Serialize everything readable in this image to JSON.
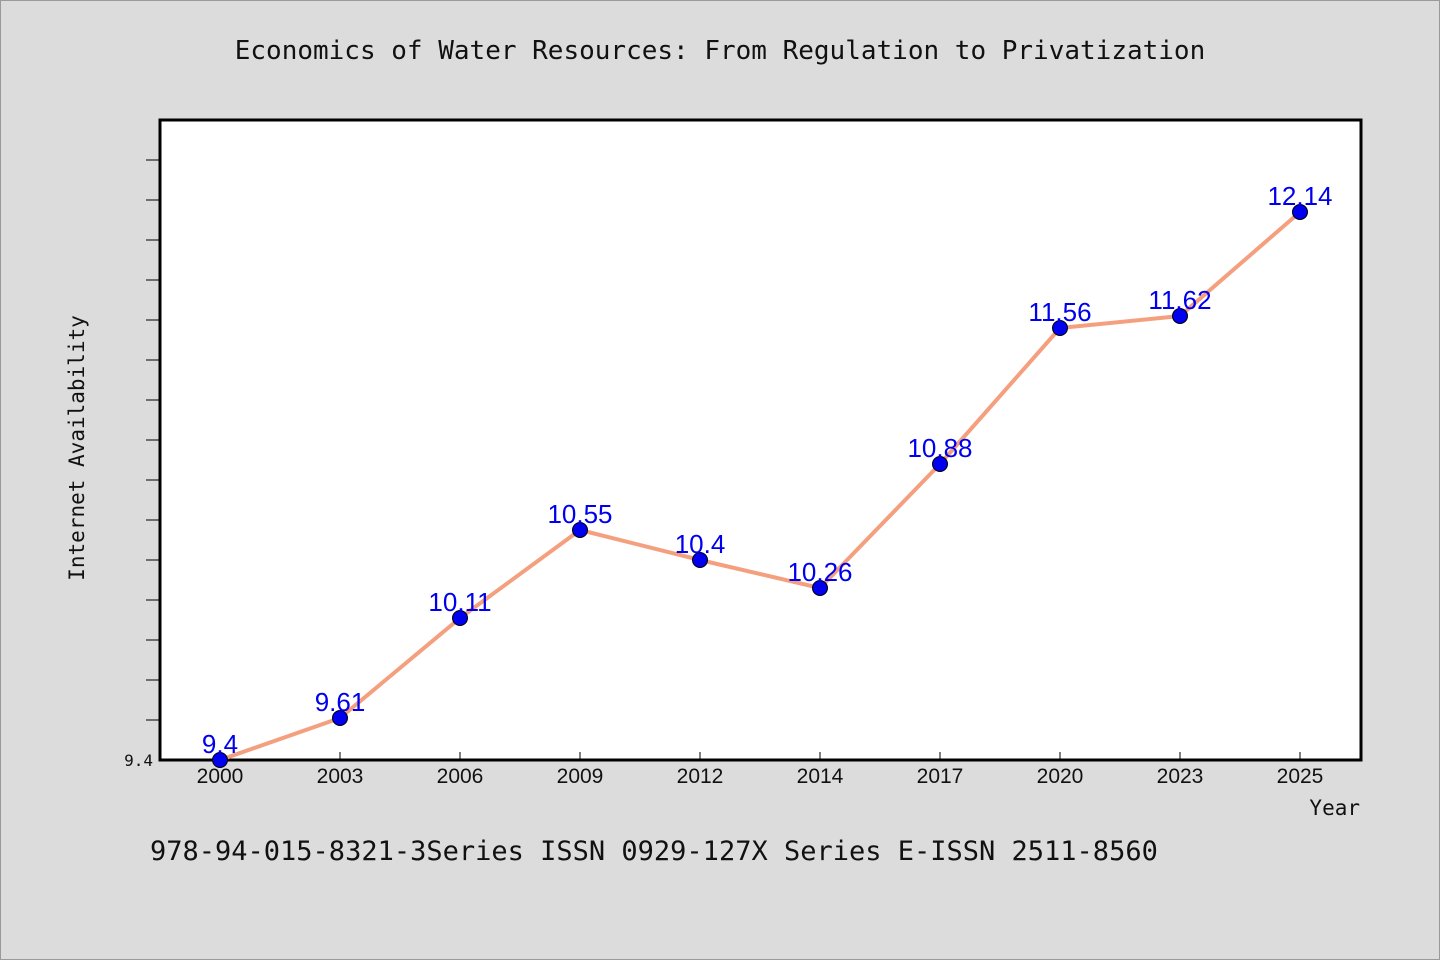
{
  "footer": "978-94-015-8321-3Series ISSN 0929-127X Series E-ISSN 2511-8560",
  "colors": {
    "line": "#f4a07f",
    "marker": "#0000ee",
    "label": "#0000ee",
    "background": "#dcdcdc"
  },
  "chart_data": {
    "type": "line",
    "title": "Economics of Water Resources: From Regulation to Privatization",
    "xlabel": "Year",
    "ylabel": "Internet Availability",
    "categories": [
      "2000",
      "2003",
      "2006",
      "2009",
      "2012",
      "2014",
      "2017",
      "2020",
      "2023",
      "2025"
    ],
    "values": [
      9.4,
      9.61,
      10.11,
      10.55,
      10.4,
      10.26,
      10.88,
      11.56,
      11.62,
      12.14
    ],
    "value_labels": [
      "9.4",
      "9.61",
      "10.11",
      "10.55",
      "10.4",
      "10.26",
      "10.88",
      "11.56",
      "11.62",
      "12.14"
    ],
    "yticks": [
      "9.4"
    ],
    "ylim": [
      9.4,
      12.6
    ],
    "grid": false,
    "legend": "none"
  }
}
